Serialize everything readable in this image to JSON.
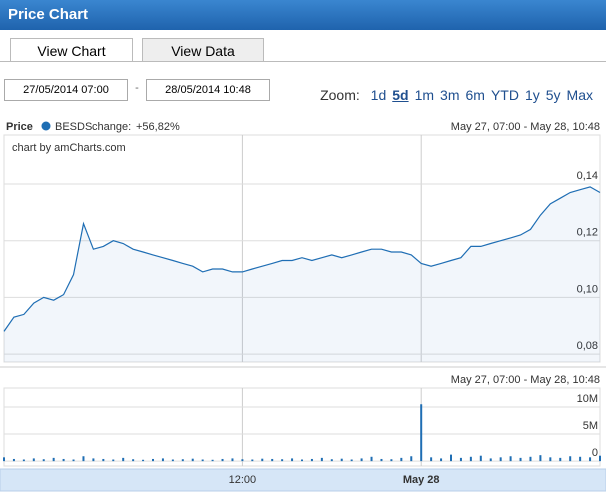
{
  "header": {
    "title": "Price Chart"
  },
  "tabs": [
    "View Chart",
    "View Data"
  ],
  "range": {
    "from": "27/05/2014 07:00",
    "separator": "-",
    "to": "28/05/2014 10:48"
  },
  "zoom": {
    "label": "Zoom:",
    "options": [
      "1d",
      "5d",
      "1m",
      "3m",
      "6m",
      "YTD",
      "1y",
      "5y",
      "Max"
    ],
    "active": 1
  },
  "chart_data": [
    {
      "type": "line",
      "title": "Price",
      "change_label": "change:",
      "change": "+56,82%",
      "period": "May 27, 07:00 - May 28, 10:48",
      "credit": "chart by amCharts.com",
      "categories": [
        null,
        null,
        null,
        null,
        null,
        null,
        null,
        null,
        null,
        null,
        null,
        null,
        null,
        null,
        null,
        null,
        null,
        null,
        null,
        null,
        null,
        null,
        null,
        null,
        null,
        null,
        null,
        null,
        null,
        null,
        null,
        null,
        null,
        null,
        null,
        null,
        null,
        null,
        null,
        null,
        null,
        null,
        null,
        null,
        null,
        null,
        null,
        null,
        null,
        null,
        null,
        null,
        null,
        null,
        null,
        null,
        null,
        null,
        null,
        null,
        null
      ],
      "series": [
        {
          "name": "BESDS",
          "color": "#1f6eb4",
          "values": [
            0.088,
            0.093,
            0.094,
            0.098,
            0.1,
            0.099,
            0.101,
            0.108,
            0.126,
            0.117,
            0.118,
            0.12,
            0.119,
            0.117,
            0.116,
            0.115,
            0.114,
            0.113,
            0.112,
            0.111,
            0.109,
            0.11,
            0.11,
            0.109,
            0.109,
            0.11,
            0.111,
            0.112,
            0.113,
            0.113,
            0.114,
            0.113,
            0.114,
            0.115,
            0.114,
            0.115,
            0.116,
            0.117,
            0.117,
            0.116,
            0.116,
            0.115,
            0.112,
            0.111,
            0.112,
            0.113,
            0.114,
            0.118,
            0.118,
            0.119,
            0.12,
            0.121,
            0.122,
            0.124,
            0.129,
            0.133,
            0.135,
            0.137,
            0.138,
            0.139,
            0.137
          ]
        }
      ],
      "ylim": [
        0.0772,
        0.1573
      ],
      "yticks": [
        {
          "value": 0.08,
          "label": "0,08"
        },
        {
          "value": 0.1,
          "label": "0,10"
        },
        {
          "value": 0.12,
          "label": "0,12"
        },
        {
          "value": 0.14,
          "label": "0,14"
        }
      ],
      "grid": true
    },
    {
      "type": "bar",
      "period": "May 27, 07:00 - May 28, 10:48",
      "categories": [
        null,
        null,
        null,
        null,
        null,
        null,
        null,
        null,
        null,
        null,
        null,
        null,
        null,
        null,
        null,
        null,
        null,
        null,
        null,
        null,
        null,
        null,
        null,
        null,
        "12:00",
        null,
        null,
        null,
        null,
        null,
        null,
        null,
        null,
        null,
        null,
        null,
        null,
        null,
        null,
        null,
        null,
        null,
        "May 28",
        null,
        null,
        null,
        null,
        null,
        null,
        null,
        null,
        null,
        null,
        null,
        null,
        null,
        null,
        null,
        null,
        null,
        null
      ],
      "color": "#1f6eb4",
      "values": [
        700000,
        400000,
        300000,
        500000,
        350000,
        600000,
        400000,
        300000,
        900000,
        500000,
        400000,
        300000,
        600000,
        350000,
        250000,
        400000,
        500000,
        300000,
        350000,
        450000,
        300000,
        250000,
        400000,
        500000,
        350000,
        300000,
        450000,
        400000,
        350000,
        500000,
        300000,
        400000,
        600000,
        350000,
        450000,
        300000,
        500000,
        800000,
        400000,
        350000,
        600000,
        900000,
        10500000,
        700000,
        500000,
        1200000,
        600000,
        800000,
        1000000,
        500000,
        700000,
        900000,
        600000,
        800000,
        1100000,
        700000,
        600000,
        900000,
        800000,
        700000,
        1000000
      ],
      "ylim": [
        -900000,
        13500000
      ],
      "yticks": [
        0,
        {
          "value": 5000000,
          "label": "5M"
        },
        {
          "value": 10000000,
          "label": "10M"
        }
      ],
      "grid": true
    }
  ]
}
